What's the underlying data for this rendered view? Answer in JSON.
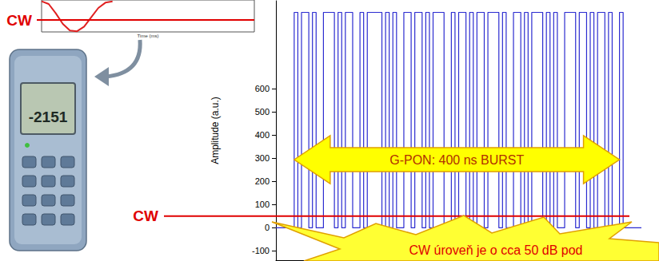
{
  "chart_data": [
    {
      "type": "line",
      "ylabel": "Amplitude (a.u.)",
      "x": [
        0,
        1,
        2,
        3,
        4,
        5,
        6,
        7,
        8,
        9,
        10,
        11,
        12,
        13,
        14,
        15,
        16,
        17,
        18,
        19,
        20,
        21,
        22,
        23,
        24,
        25,
        26,
        27,
        28,
        29,
        30,
        31,
        32,
        33,
        34,
        35,
        36,
        37,
        38,
        39,
        40,
        41,
        42,
        43,
        44,
        45,
        46,
        47,
        48,
        49,
        50,
        51,
        52,
        53,
        54,
        55,
        56,
        57,
        58,
        59,
        60,
        61,
        62,
        63,
        64,
        65,
        66,
        67,
        68,
        69,
        70,
        71,
        72,
        73,
        74,
        75,
        76,
        77,
        78,
        79,
        80,
        81,
        82,
        83,
        84,
        85,
        86,
        87,
        88,
        89,
        90,
        91,
        92,
        93,
        94,
        95,
        96,
        97,
        98,
        99,
        100
      ],
      "values": [
        0,
        0,
        0,
        0,
        0,
        930,
        0,
        930,
        930,
        0,
        930,
        0,
        0,
        930,
        930,
        930,
        0,
        930,
        0,
        930,
        930,
        0,
        0,
        930,
        0,
        930,
        930,
        930,
        930,
        0,
        930,
        0,
        930,
        0,
        0,
        930,
        930,
        0,
        930,
        930,
        0,
        930,
        0,
        930,
        930,
        930,
        0,
        0,
        930,
        0,
        930,
        930,
        0,
        930,
        0,
        930,
        930,
        0,
        930,
        930,
        930,
        0,
        930,
        0,
        0,
        930,
        930,
        0,
        930,
        0,
        930,
        930,
        930,
        0,
        930,
        0,
        930,
        0,
        0,
        930,
        930,
        930,
        0,
        930,
        930,
        0,
        930,
        0,
        930,
        930,
        0,
        930,
        0,
        0,
        930,
        0,
        0,
        0,
        0,
        0,
        0
      ],
      "xlim": [
        0,
        100
      ],
      "ylim": [
        -140,
        980
      ],
      "yticks": [
        -100,
        0,
        100,
        200,
        300,
        400,
        500,
        600
      ],
      "tick_labels": "y",
      "grid": false,
      "color": "#2b2bd0",
      "line_style": "step",
      "annotations": [
        {
          "text": "CW",
          "y": 50
        },
        {
          "text": "G-PON: 400 ns BURST",
          "x": [
            5,
            94
          ]
        },
        {
          "text": "CW úroveň je o cca 50 dB pod"
        }
      ]
    },
    {
      "type": "line",
      "xlabel": "Time (ms)",
      "x": [
        0,
        1,
        2,
        3,
        4,
        5,
        6,
        7,
        8,
        9,
        10
      ],
      "values": [
        1.1,
        0.9,
        0.2,
        -0.6,
        -1.1,
        -1.15,
        -0.8,
        -0.1,
        0.6,
        1.0,
        1.1
      ],
      "xlim": [
        0,
        30
      ],
      "ylim": [
        -1.2,
        1.2
      ],
      "tick_labels": false,
      "grid": false,
      "color": "#e02020",
      "annotations": [
        {
          "text": "CW",
          "y": -0.3
        }
      ]
    }
  ],
  "device": {
    "display": "-2151"
  }
}
